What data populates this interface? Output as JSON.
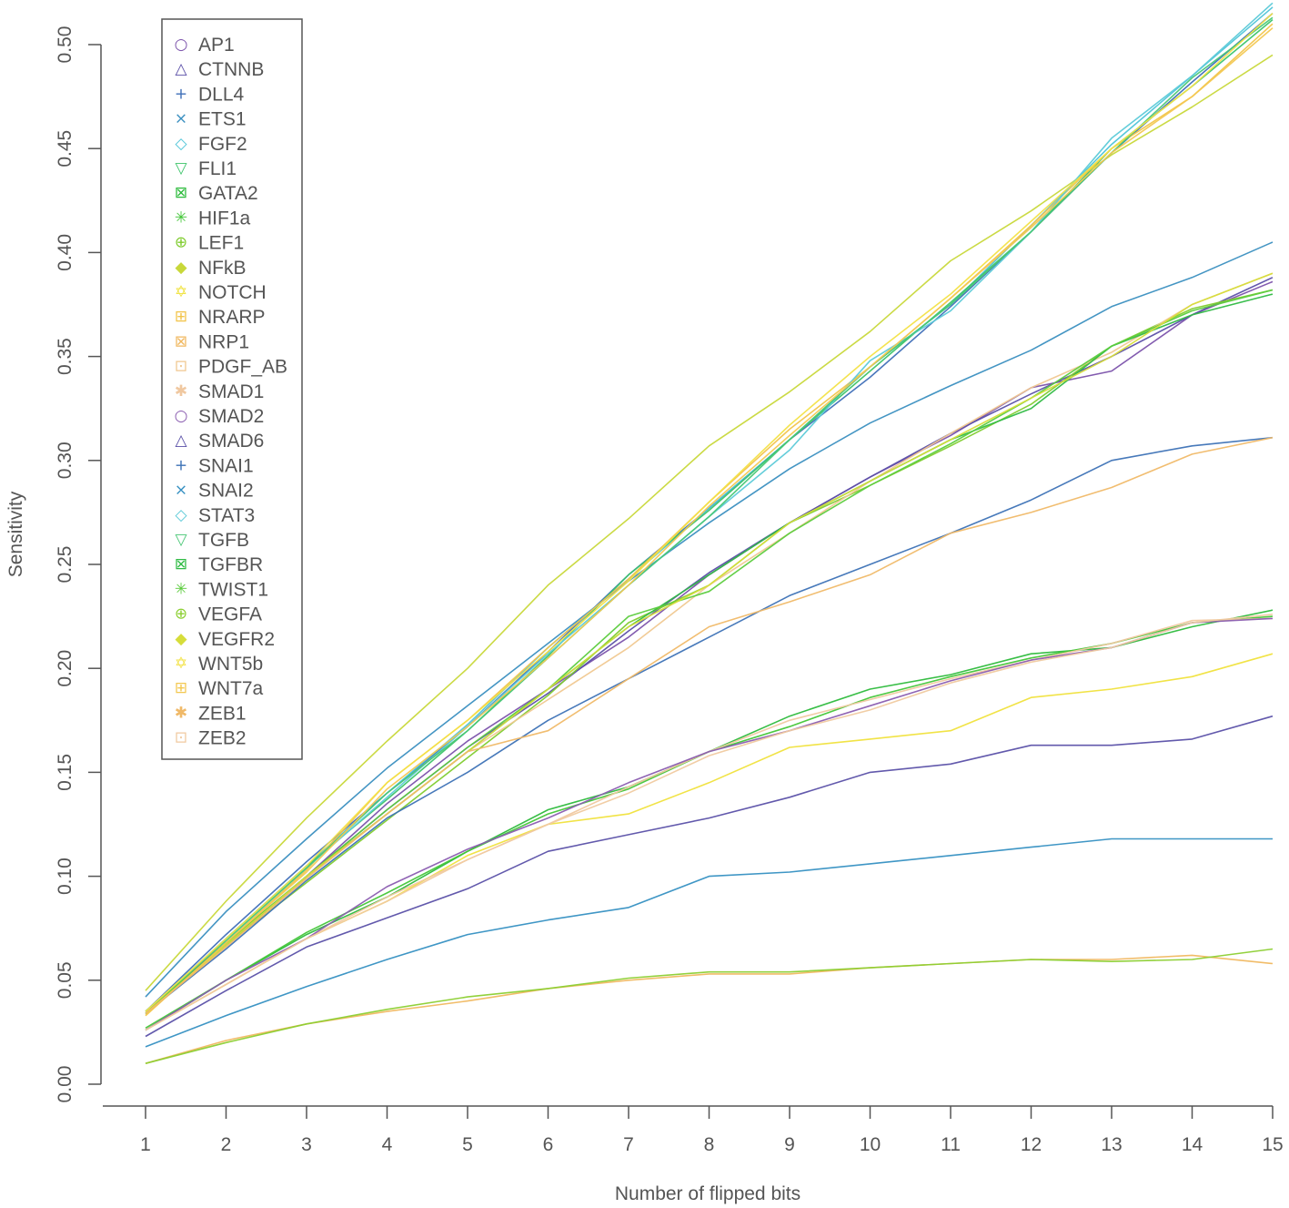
{
  "chart_data": {
    "type": "line",
    "title": "",
    "xlabel": "Number of flipped bits",
    "ylabel": "Sensitivity",
    "xlim": [
      1,
      15
    ],
    "ylim": [
      0.0,
      0.5
    ],
    "x": [
      1,
      2,
      3,
      4,
      5,
      6,
      7,
      8,
      9,
      10,
      11,
      12,
      13,
      14,
      15
    ],
    "x_tick_labels": [
      "1",
      "2",
      "3",
      "4",
      "5",
      "6",
      "7",
      "8",
      "9",
      "10",
      "11",
      "12",
      "13",
      "14",
      "15"
    ],
    "y_ticks": [
      0.0,
      0.05,
      0.1,
      0.15,
      0.2,
      0.25,
      0.3,
      0.35,
      0.4,
      0.45,
      0.5
    ],
    "y_tick_labels": [
      "0.00",
      "0.05",
      "0.10",
      "0.15",
      "0.20",
      "0.25",
      "0.30",
      "0.35",
      "0.40",
      "0.45",
      "0.50"
    ],
    "legend_position": "top-left",
    "grid": false,
    "series": [
      {
        "name": "AP1",
        "color": "#7b52ab",
        "marker": "○",
        "values": [
          0.035,
          0.068,
          0.1,
          0.135,
          0.165,
          0.19,
          0.215,
          0.245,
          0.27,
          0.292,
          0.312,
          0.335,
          0.343,
          0.37,
          0.386
        ]
      },
      {
        "name": "CTNNB",
        "color": "#5b4fa8",
        "marker": "△",
        "values": [
          0.034,
          0.067,
          0.1,
          0.132,
          0.162,
          0.188,
          0.218,
          0.246,
          0.27,
          0.292,
          0.313,
          0.332,
          0.35,
          0.37,
          0.388
        ]
      },
      {
        "name": "DLL4",
        "color": "#3f6fb8",
        "marker": "+",
        "values": [
          0.035,
          0.072,
          0.107,
          0.14,
          0.172,
          0.208,
          0.245,
          0.277,
          0.31,
          0.34,
          0.374,
          0.41,
          0.448,
          0.482,
          0.515
        ]
      },
      {
        "name": "ETS1",
        "color": "#3a8fc0",
        "marker": "×",
        "values": [
          0.042,
          0.083,
          0.118,
          0.152,
          0.182,
          0.212,
          0.242,
          0.27,
          0.296,
          0.318,
          0.336,
          0.353,
          0.374,
          0.388,
          0.405
        ]
      },
      {
        "name": "FGF2",
        "color": "#4ec4d8",
        "marker": "◇",
        "values": [
          0.034,
          0.07,
          0.105,
          0.14,
          0.173,
          0.21,
          0.243,
          0.277,
          0.31,
          0.345,
          0.375,
          0.413,
          0.452,
          0.485,
          0.518
        ]
      },
      {
        "name": "FLI1",
        "color": "#3cc46a",
        "marker": "▽",
        "values": [
          0.034,
          0.07,
          0.105,
          0.137,
          0.17,
          0.206,
          0.245,
          0.276,
          0.31,
          0.343,
          0.376,
          0.41,
          0.45,
          0.48,
          0.512
        ]
      },
      {
        "name": "GATA2",
        "color": "#2dbb3c",
        "marker": "⊠",
        "values": [
          0.026,
          0.05,
          0.072,
          0.09,
          0.112,
          0.132,
          0.143,
          0.16,
          0.177,
          0.19,
          0.197,
          0.207,
          0.21,
          0.22,
          0.228
        ]
      },
      {
        "name": "HIF1a",
        "color": "#43c638",
        "marker": "✳",
        "values": [
          0.027,
          0.05,
          0.073,
          0.092,
          0.112,
          0.13,
          0.142,
          0.16,
          0.172,
          0.186,
          0.196,
          0.205,
          0.212,
          0.222,
          0.225
        ]
      },
      {
        "name": "LEF1",
        "color": "#7fcc2e",
        "marker": "⊕",
        "values": [
          0.035,
          0.067,
          0.097,
          0.127,
          0.157,
          0.187,
          0.222,
          0.24,
          0.27,
          0.288,
          0.307,
          0.327,
          0.355,
          0.373,
          0.382
        ]
      },
      {
        "name": "NFkB",
        "color": "#c8d83a",
        "marker": "◆",
        "values": [
          0.045,
          0.088,
          0.128,
          0.165,
          0.2,
          0.24,
          0.272,
          0.307,
          0.333,
          0.362,
          0.396,
          0.42,
          0.447,
          0.47,
          0.495
        ]
      },
      {
        "name": "NOTCH",
        "color": "#f0e23c",
        "marker": "✡",
        "values": [
          0.026,
          0.048,
          0.07,
          0.088,
          0.11,
          0.125,
          0.13,
          0.145,
          0.162,
          0.166,
          0.17,
          0.186,
          0.19,
          0.196,
          0.207
        ]
      },
      {
        "name": "NRARP",
        "color": "#f2c44a",
        "marker": "⊞",
        "values": [
          0.033,
          0.068,
          0.103,
          0.145,
          0.175,
          0.21,
          0.243,
          0.28,
          0.315,
          0.345,
          0.378,
          0.413,
          0.45,
          0.475,
          0.51
        ]
      },
      {
        "name": "NRP1",
        "color": "#f0b860",
        "marker": "⊠",
        "values": [
          0.01,
          0.021,
          0.029,
          0.035,
          0.04,
          0.046,
          0.05,
          0.053,
          0.053,
          0.056,
          0.058,
          0.06,
          0.06,
          0.062,
          0.058
        ]
      },
      {
        "name": "PDGF_AB",
        "color": "#f0c890",
        "marker": "⊡",
        "values": [
          0.034,
          0.067,
          0.1,
          0.13,
          0.16,
          0.185,
          0.21,
          0.24,
          0.265,
          0.29,
          0.313,
          0.335,
          0.352,
          0.375,
          0.39
        ]
      },
      {
        "name": "SMAD1",
        "color": "#f0c8a0",
        "marker": "✱",
        "values": [
          0.026,
          0.048,
          0.07,
          0.09,
          0.108,
          0.125,
          0.143,
          0.16,
          0.175,
          0.185,
          0.195,
          0.204,
          0.212,
          0.223,
          0.224
        ]
      },
      {
        "name": "SMAD2",
        "color": "#8a5cb0",
        "marker": "○",
        "values": [
          0.026,
          0.05,
          0.07,
          0.095,
          0.113,
          0.128,
          0.145,
          0.16,
          0.17,
          0.182,
          0.194,
          0.204,
          0.21,
          0.222,
          0.224
        ]
      },
      {
        "name": "SMAD6",
        "color": "#5a50a8",
        "marker": "△",
        "values": [
          0.023,
          0.045,
          0.066,
          0.08,
          0.094,
          0.112,
          0.12,
          0.128,
          0.138,
          0.15,
          0.154,
          0.163,
          0.163,
          0.166,
          0.177
        ]
      },
      {
        "name": "SNAI1",
        "color": "#3d72b6",
        "marker": "+",
        "values": [
          0.034,
          0.065,
          0.098,
          0.128,
          0.15,
          0.175,
          0.195,
          0.215,
          0.235,
          0.25,
          0.265,
          0.281,
          0.3,
          0.307,
          0.311
        ]
      },
      {
        "name": "SNAI2",
        "color": "#3590c2",
        "marker": "×",
        "values": [
          0.018,
          0.033,
          0.047,
          0.06,
          0.072,
          0.079,
          0.085,
          0.1,
          0.102,
          0.106,
          0.11,
          0.114,
          0.118,
          0.118,
          0.118
        ]
      },
      {
        "name": "STAT3",
        "color": "#5ccad8",
        "marker": "◇",
        "values": [
          0.035,
          0.07,
          0.104,
          0.138,
          0.172,
          0.207,
          0.24,
          0.273,
          0.305,
          0.348,
          0.372,
          0.41,
          0.455,
          0.485,
          0.52
        ]
      },
      {
        "name": "TGFB",
        "color": "#49c776",
        "marker": "▽",
        "values": [
          0.035,
          0.069,
          0.104,
          0.14,
          0.17,
          0.205,
          0.24,
          0.273,
          0.31,
          0.345,
          0.375,
          0.41,
          0.448,
          0.484,
          0.513
        ]
      },
      {
        "name": "TGFBR",
        "color": "#30bb45",
        "marker": "⊠",
        "values": [
          0.034,
          0.067,
          0.1,
          0.13,
          0.16,
          0.19,
          0.22,
          0.245,
          0.27,
          0.29,
          0.31,
          0.325,
          0.355,
          0.37,
          0.38
        ]
      },
      {
        "name": "TWIST1",
        "color": "#5ccc3e",
        "marker": "✳",
        "values": [
          0.034,
          0.068,
          0.1,
          0.132,
          0.162,
          0.19,
          0.225,
          0.237,
          0.265,
          0.288,
          0.308,
          0.33,
          0.355,
          0.372,
          0.382
        ]
      },
      {
        "name": "VEGFA",
        "color": "#8ccf32",
        "marker": "⊕",
        "values": [
          0.01,
          0.02,
          0.029,
          0.036,
          0.042,
          0.046,
          0.051,
          0.054,
          0.054,
          0.056,
          0.058,
          0.06,
          0.059,
          0.06,
          0.065
        ]
      },
      {
        "name": "VEGFR2",
        "color": "#d6dd3a",
        "marker": "◆",
        "values": [
          0.034,
          0.067,
          0.1,
          0.13,
          0.16,
          0.19,
          0.22,
          0.24,
          0.27,
          0.29,
          0.31,
          0.33,
          0.35,
          0.375,
          0.39
        ]
      },
      {
        "name": "WNT5b",
        "color": "#f3e246",
        "marker": "✡",
        "values": [
          0.035,
          0.07,
          0.105,
          0.145,
          0.175,
          0.208,
          0.242,
          0.28,
          0.317,
          0.35,
          0.38,
          0.415,
          0.45,
          0.48,
          0.515
        ]
      },
      {
        "name": "WNT7a",
        "color": "#f3c852",
        "marker": "⊞",
        "values": [
          0.033,
          0.068,
          0.102,
          0.142,
          0.172,
          0.205,
          0.24,
          0.278,
          0.312,
          0.345,
          0.378,
          0.412,
          0.448,
          0.475,
          0.508
        ]
      },
      {
        "name": "ZEB1",
        "color": "#f0b968",
        "marker": "✱",
        "values": [
          0.034,
          0.066,
          0.099,
          0.13,
          0.16,
          0.17,
          0.195,
          0.22,
          0.232,
          0.245,
          0.265,
          0.275,
          0.287,
          0.303,
          0.311
        ]
      },
      {
        "name": "ZEB2",
        "color": "#f0caa0",
        "marker": "⊡",
        "values": [
          0.026,
          0.048,
          0.07,
          0.088,
          0.108,
          0.125,
          0.14,
          0.158,
          0.17,
          0.18,
          0.193,
          0.203,
          0.21,
          0.222,
          0.226
        ]
      }
    ]
  }
}
